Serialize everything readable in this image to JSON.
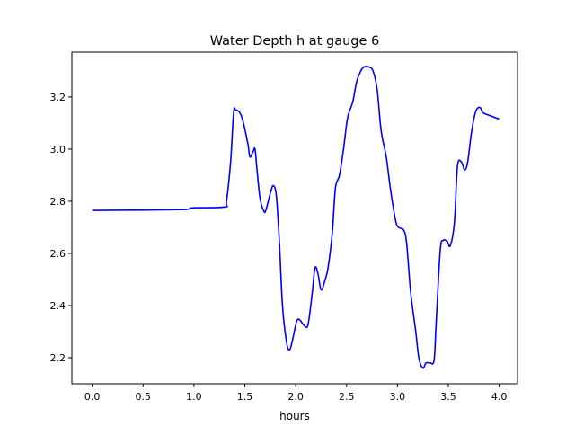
{
  "chart_data": {
    "type": "line",
    "title": "Water Depth h at gauge 6",
    "xlabel": "hours",
    "ylabel": "",
    "xlim": [
      -0.2,
      4.18
    ],
    "ylim": [
      2.1,
      3.372
    ],
    "xticks": [
      0.0,
      0.5,
      1.0,
      1.5,
      2.0,
      2.5,
      3.0,
      3.5,
      4.0
    ],
    "xtick_labels": [
      "0.0",
      "0.5",
      "1.0",
      "1.5",
      "2.0",
      "2.5",
      "3.0",
      "3.5",
      "4.0"
    ],
    "yticks": [
      2.2,
      2.4,
      2.6,
      2.8,
      3.0,
      3.2
    ],
    "ytick_labels": [
      "2.2",
      "2.4",
      "2.6",
      "2.8",
      "3.0",
      "3.2"
    ],
    "grid": false,
    "series": [
      {
        "name": "h",
        "color": "#0000ff",
        "x": [
          0.0,
          0.86,
          0.99,
          1.3,
          1.32,
          1.36,
          1.39,
          1.41,
          1.45,
          1.48,
          1.53,
          1.55,
          1.58,
          1.6,
          1.62,
          1.65,
          1.69,
          1.71,
          1.75,
          1.78,
          1.81,
          1.84,
          1.87,
          1.91,
          1.94,
          1.97,
          2.01,
          2.04,
          2.08,
          2.12,
          2.16,
          2.19,
          2.22,
          2.25,
          2.29,
          2.32,
          2.36,
          2.39,
          2.43,
          2.47,
          2.51,
          2.56,
          2.6,
          2.64,
          2.67,
          2.72,
          2.76,
          2.8,
          2.84,
          2.89,
          2.93,
          2.98,
          3.01,
          3.06,
          3.09,
          3.13,
          3.18,
          3.21,
          3.25,
          3.28,
          3.32,
          3.36,
          3.38,
          3.42,
          3.45,
          3.49,
          3.52,
          3.56,
          3.59,
          3.63,
          3.66,
          3.69,
          3.73,
          3.77,
          3.81,
          3.84,
          3.9,
          4.0
        ],
        "y": [
          2.765,
          2.768,
          2.775,
          2.778,
          2.8,
          2.95,
          3.14,
          3.15,
          3.14,
          3.11,
          3.02,
          2.97,
          2.99,
          3.0,
          2.92,
          2.81,
          2.76,
          2.77,
          2.83,
          2.86,
          2.82,
          2.64,
          2.4,
          2.26,
          2.23,
          2.27,
          2.34,
          2.345,
          2.325,
          2.325,
          2.44,
          2.545,
          2.52,
          2.46,
          2.5,
          2.55,
          2.68,
          2.85,
          2.9,
          3.0,
          3.12,
          3.18,
          3.26,
          3.3,
          3.315,
          3.315,
          3.3,
          3.23,
          3.07,
          2.97,
          2.85,
          2.73,
          2.7,
          2.69,
          2.64,
          2.45,
          2.3,
          2.2,
          2.16,
          2.18,
          2.18,
          2.19,
          2.33,
          2.61,
          2.65,
          2.645,
          2.63,
          2.72,
          2.935,
          2.95,
          2.92,
          2.95,
          3.07,
          3.145,
          3.16,
          3.14,
          3.13,
          3.115
        ]
      }
    ]
  }
}
